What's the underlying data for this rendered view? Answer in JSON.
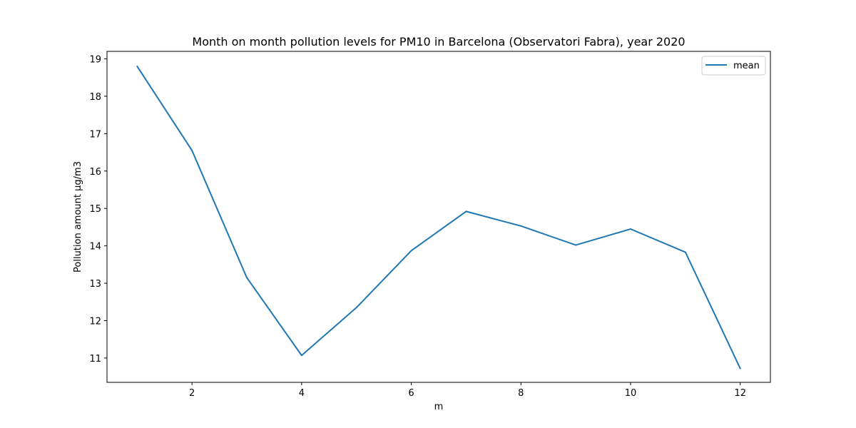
{
  "chart_data": {
    "type": "line",
    "title": "Month on month pollution levels for PM10 in Barcelona (Observatori Fabra), year 2020",
    "xlabel": "m",
    "ylabel": "Pollution amount µg/m3",
    "x": [
      1,
      2,
      3,
      4,
      5,
      6,
      7,
      8,
      9,
      10,
      11,
      12
    ],
    "series": [
      {
        "name": "mean",
        "color": "#1f77b4",
        "values": [
          18.8,
          16.55,
          13.15,
          11.07,
          12.35,
          13.87,
          14.92,
          14.53,
          14.02,
          14.45,
          13.83,
          10.72
        ]
      }
    ],
    "xlim": [
      0.45,
      12.55
    ],
    "ylim": [
      10.35,
      19.2
    ],
    "xticks": [
      2,
      4,
      6,
      8,
      10,
      12
    ],
    "yticks": [
      11,
      12,
      13,
      14,
      15,
      16,
      17,
      18,
      19
    ],
    "grid": false,
    "legend_position": "top-right"
  }
}
